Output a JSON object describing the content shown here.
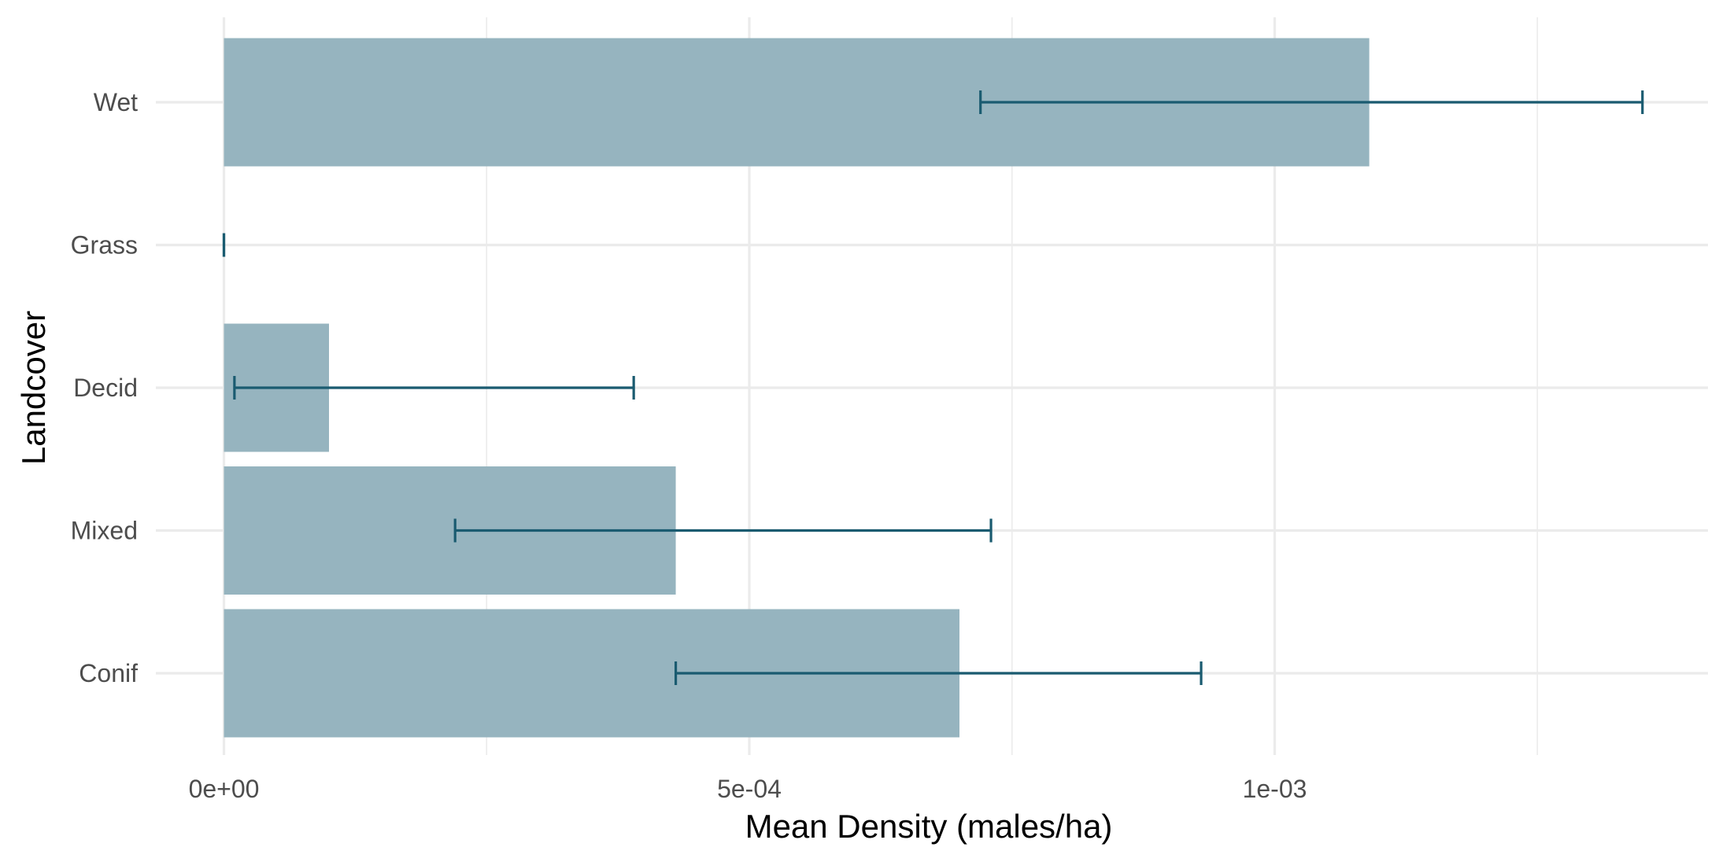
{
  "chart_data": {
    "type": "bar",
    "orientation": "horizontal",
    "title": "",
    "xlabel": "Mean Density (males/ha)",
    "ylabel": "Landcover",
    "categories": [
      "Conif",
      "Mixed",
      "Decid",
      "Grass",
      "Wet"
    ],
    "values": [
      0.0007,
      0.00043,
      0.0001,
      0.0,
      0.00109
    ],
    "error_low": [
      0.00043,
      0.00022,
      1e-05,
      0.0,
      0.00072
    ],
    "error_high": [
      0.00093,
      0.00073,
      0.00039,
      0.0,
      0.00135
    ],
    "xlim": [
      -6.55e-05,
      0.00141
    ],
    "xticks": [
      0,
      0.0005,
      0.001
    ],
    "xtick_labels": [
      "0e+00",
      "5e-04",
      "1e-03"
    ],
    "x_minor_gridlines": [
      0.00025,
      0.00075,
      0.00125
    ],
    "grid": true,
    "legend": "none",
    "colors": {
      "bar": "#96b4bf",
      "error_bar": "#1a5b70",
      "grid": "#ebebeb",
      "tick_text": "#4d4d4d",
      "title_text": "#000000"
    }
  }
}
